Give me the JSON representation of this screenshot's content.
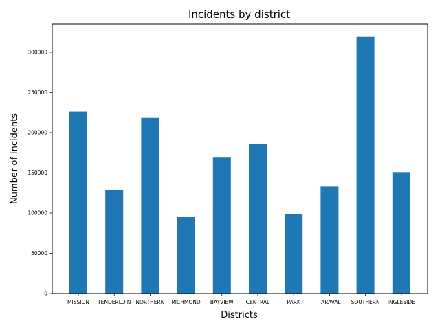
{
  "chart_data": {
    "type": "bar",
    "title": "Incidents by district",
    "xlabel": "Districts",
    "ylabel": "Number of incidents",
    "categories": [
      "MISSION",
      "TENDERLOIN",
      "NORTHERN",
      "RICHMOND",
      "BAYVIEW",
      "CENTRAL",
      "PARK",
      "TARAVAL",
      "SOUTHERN",
      "INGLESIDE"
    ],
    "values": [
      226000,
      129000,
      219000,
      95000,
      169000,
      186000,
      99000,
      133000,
      319000,
      151000
    ],
    "ylim": [
      0,
      335000
    ],
    "yticks": [
      0,
      50000,
      100000,
      150000,
      200000,
      250000,
      300000
    ],
    "grid": false,
    "bar_color": "#1f77b4"
  }
}
